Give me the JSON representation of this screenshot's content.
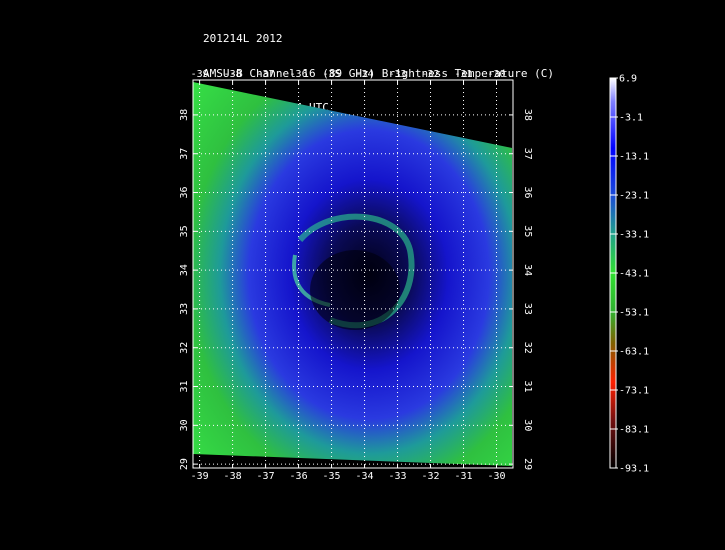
{
  "header": {
    "line1": "201214L 2012",
    "line2": "AMSU-B Channel 16 (89 GHz) Brightness Temperature (C)",
    "line3": "0918 Time: 0424 UTC",
    "line4": "NOAA-19"
  },
  "chart_data": {
    "type": "heatmap",
    "title": "AMSU-B Channel 16 (89 GHz) Brightness Temperature (C)",
    "storm": "201214L 2012",
    "date_time": "0918 Time: 0424 UTC",
    "satellite": "NOAA-19",
    "x_ticks": [
      -39,
      -38,
      -37,
      -36,
      -35,
      -34,
      -33,
      -32,
      -31,
      -30
    ],
    "y_ticks": [
      29,
      30,
      31,
      32,
      33,
      34,
      35,
      36,
      37,
      38
    ],
    "xlim": [
      -39.2,
      -29.5
    ],
    "ylim": [
      28.9,
      38.9
    ],
    "grid": true,
    "colorbar": {
      "labels": [
        "6.9",
        "-3.1",
        "-13.1",
        "-23.1",
        "-33.1",
        "-43.1",
        "-53.1",
        "-63.1",
        "-73.1",
        "-83.1",
        "-93.1"
      ],
      "range": [
        -93.1,
        6.9
      ]
    }
  }
}
